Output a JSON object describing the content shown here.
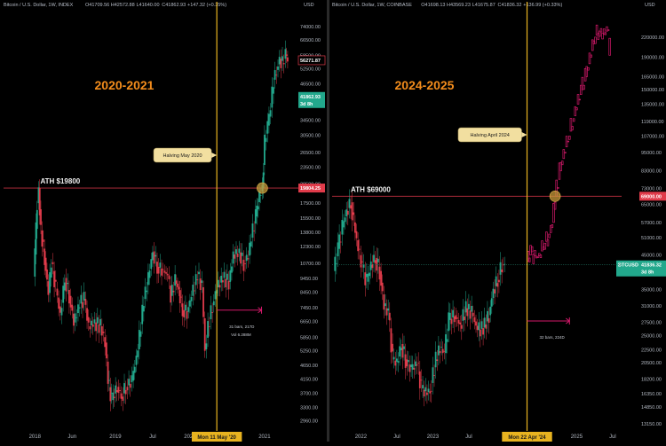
{
  "chart_data": [
    {
      "type": "candlestick",
      "title": "2020-2021",
      "header": {
        "symbol": "Bitcoin / U.S. Dollar, 1W, INDEX",
        "o": "O41709.56",
        "h": "H42572.88",
        "l": "L41640.00",
        "c": "C41862.93",
        "chg": "+147.32 (+0.35%)"
      },
      "currency": "USD",
      "scale": "log",
      "ylim": [
        2800,
        82000
      ],
      "y_ticks": [
        "74000.00",
        "66500.00",
        "58500.00",
        "52500.00",
        "46500.00",
        "39500.00",
        "34500.00",
        "30500.00",
        "26500.00",
        "23500.00",
        "20500.00",
        "17500.00",
        "15500.00",
        "13800.00",
        "12300.00",
        "10700.00",
        "9450.00",
        "8450.00",
        "7450.00",
        "6650.00",
        "5850.00",
        "5250.00",
        "4650.00",
        "4150.00",
        "3700.00",
        "3300.00",
        "2960.00"
      ],
      "x_ticks": [
        {
          "label": "2018",
          "t": 2017.92
        },
        {
          "label": "Jun",
          "t": 2018.42
        },
        {
          "label": "2019",
          "t": 2019.0
        },
        {
          "label": "Jul",
          "t": 2019.5
        },
        {
          "label": "2020",
          "t": 2020.0
        },
        {
          "label": "Jul",
          "t": 2020.5
        },
        {
          "label": "2021",
          "t": 2021.0
        }
      ],
      "xlim": [
        2017.5,
        2021.43
      ],
      "ath_label": "ATH $19800",
      "ath_value": 19800,
      "ath_date": 2017.97,
      "cross_date": 2020.97,
      "halving_label": "Halving May 2020",
      "halving_date": 2020.36,
      "date_tag": "Mon 11 May '20",
      "price_tags": [
        {
          "label": "56271.87",
          "value": 56271.87,
          "color": "#e03b4a",
          "style": "outline"
        },
        {
          "label": "41862.93",
          "value": 41862.93,
          "color": "#22a88c",
          "style": "fill",
          "sub": "3d 8h"
        },
        {
          "label": "19804.25",
          "value": 19804.25,
          "color": "#e03b4a",
          "style": "fill"
        }
      ],
      "measure": {
        "bars": "31 bars, 217D",
        "vol": "Vol 6.288M",
        "from": 2020.36,
        "to": 2020.96,
        "value": 7300
      },
      "series": [
        {
          "t": 2017.9,
          "v": 9600
        },
        {
          "t": 2017.92,
          "v": 11500
        },
        {
          "t": 2017.95,
          "v": 17500
        },
        {
          "t": 2017.97,
          "v": 19800
        },
        {
          "t": 2018.0,
          "v": 14000
        },
        {
          "t": 2018.05,
          "v": 11200
        },
        {
          "t": 2018.1,
          "v": 8400
        },
        {
          "t": 2018.14,
          "v": 10800
        },
        {
          "t": 2018.2,
          "v": 8700
        },
        {
          "t": 2018.26,
          "v": 7000
        },
        {
          "t": 2018.32,
          "v": 9500
        },
        {
          "t": 2018.38,
          "v": 8200
        },
        {
          "t": 2018.44,
          "v": 6600
        },
        {
          "t": 2018.52,
          "v": 7700
        },
        {
          "t": 2018.58,
          "v": 8000
        },
        {
          "t": 2018.64,
          "v": 6400
        },
        {
          "t": 2018.72,
          "v": 6600
        },
        {
          "t": 2018.8,
          "v": 6400
        },
        {
          "t": 2018.86,
          "v": 5600
        },
        {
          "t": 2018.9,
          "v": 4100
        },
        {
          "t": 2018.95,
          "v": 3500
        },
        {
          "t": 2019.02,
          "v": 3900
        },
        {
          "t": 2019.08,
          "v": 3600
        },
        {
          "t": 2019.14,
          "v": 3900
        },
        {
          "t": 2019.22,
          "v": 4100
        },
        {
          "t": 2019.3,
          "v": 5300
        },
        {
          "t": 2019.38,
          "v": 8000
        },
        {
          "t": 2019.44,
          "v": 9500
        },
        {
          "t": 2019.5,
          "v": 11800
        },
        {
          "t": 2019.56,
          "v": 10400
        },
        {
          "t": 2019.62,
          "v": 10200
        },
        {
          "t": 2019.7,
          "v": 9700
        },
        {
          "t": 2019.74,
          "v": 8200
        },
        {
          "t": 2019.8,
          "v": 9300
        },
        {
          "t": 2019.85,
          "v": 8600
        },
        {
          "t": 2019.9,
          "v": 7300
        },
        {
          "t": 2019.96,
          "v": 7200
        },
        {
          "t": 2020.02,
          "v": 8200
        },
        {
          "t": 2020.1,
          "v": 9800
        },
        {
          "t": 2020.16,
          "v": 8800
        },
        {
          "t": 2020.2,
          "v": 5300
        },
        {
          "t": 2020.24,
          "v": 6400
        },
        {
          "t": 2020.3,
          "v": 7600
        },
        {
          "t": 2020.36,
          "v": 8800
        },
        {
          "t": 2020.44,
          "v": 9500
        },
        {
          "t": 2020.52,
          "v": 9200
        },
        {
          "t": 2020.58,
          "v": 11500
        },
        {
          "t": 2020.66,
          "v": 11700
        },
        {
          "t": 2020.72,
          "v": 10700
        },
        {
          "t": 2020.78,
          "v": 11400
        },
        {
          "t": 2020.82,
          "v": 13200
        },
        {
          "t": 2020.88,
          "v": 15700
        },
        {
          "t": 2020.93,
          "v": 18700
        },
        {
          "t": 2020.97,
          "v": 19800
        },
        {
          "t": 2021.0,
          "v": 28900
        },
        {
          "t": 2021.04,
          "v": 33000
        },
        {
          "t": 2021.08,
          "v": 38200
        },
        {
          "t": 2021.12,
          "v": 48000
        },
        {
          "t": 2021.16,
          "v": 52000
        },
        {
          "t": 2021.2,
          "v": 57000
        },
        {
          "t": 2021.24,
          "v": 55000
        },
        {
          "t": 2021.28,
          "v": 59000
        },
        {
          "t": 2021.31,
          "v": 56271.87
        }
      ]
    },
    {
      "type": "candlestick",
      "title": "2024-2025",
      "header": {
        "symbol": "Bitcoin / U.S. Dollar, 1W, COINBASE",
        "o": "O41698.13",
        "h": "H43569.23",
        "l": "L41675.87",
        "c": "C41836.32",
        "chg": "+136.99 (+0.33%)"
      },
      "currency": "USD",
      "scale": "log",
      "ylim": [
        12800,
        260000
      ],
      "y_ticks": [
        "220000.00",
        "190000.00",
        "165000.00",
        "150000.00",
        "135000.00",
        "119000.00",
        "107000.00",
        "95000.00",
        "83000.00",
        "73000.00",
        "65000.00",
        "57000.00",
        "51000.00",
        "45000.00",
        "39000.00",
        "35000.00",
        "31000.00",
        "27500.00",
        "25000.00",
        "22500.00",
        "20500.00",
        "18200.00",
        "16350.00",
        "14850.00",
        "13150.00"
      ],
      "x_ticks": [
        {
          "label": "2022",
          "t": 2022.0
        },
        {
          "label": "Jul",
          "t": 2022.5
        },
        {
          "label": "2023",
          "t": 2023.0
        },
        {
          "label": "Jul",
          "t": 2023.5
        },
        {
          "label": "2025",
          "t": 2025.0
        },
        {
          "label": "Jul",
          "t": 2025.5
        }
      ],
      "xlim": [
        2021.6,
        2025.6
      ],
      "ath_label": "ATH $69000",
      "ath_value": 69000,
      "ath_date": 2021.86,
      "cross_date": 2024.7,
      "halving_label": "Halving April 2024",
      "halving_date": 2024.31,
      "date_tag": "Mon 22 Apr '24",
      "price_tags": [
        {
          "label": "69000.00",
          "value": 69000,
          "color": "#e03b4a",
          "style": "fill"
        },
        {
          "label": "BTCUSD",
          "value": 41836.32,
          "color": "#22a88c",
          "style": "fill",
          "sub": "",
          "wide": "41836.32",
          "sub2": "3d 8h"
        }
      ],
      "measure": {
        "bars": "32 bars, 224D",
        "from": 2024.31,
        "to": 2024.9,
        "value": 27800
      },
      "history": [
        {
          "t": 2021.62,
          "v": 40000
        },
        {
          "t": 2021.68,
          "v": 47000
        },
        {
          "t": 2021.74,
          "v": 55000
        },
        {
          "t": 2021.8,
          "v": 62000
        },
        {
          "t": 2021.86,
          "v": 66000
        },
        {
          "t": 2021.9,
          "v": 57000
        },
        {
          "t": 2021.96,
          "v": 47000
        },
        {
          "t": 2022.02,
          "v": 41000
        },
        {
          "t": 2022.08,
          "v": 37000
        },
        {
          "t": 2022.14,
          "v": 42000
        },
        {
          "t": 2022.2,
          "v": 44000
        },
        {
          "t": 2022.26,
          "v": 40000
        },
        {
          "t": 2022.32,
          "v": 31000
        },
        {
          "t": 2022.38,
          "v": 29500
        },
        {
          "t": 2022.44,
          "v": 21000
        },
        {
          "t": 2022.5,
          "v": 20500
        },
        {
          "t": 2022.56,
          "v": 23500
        },
        {
          "t": 2022.62,
          "v": 21000
        },
        {
          "t": 2022.7,
          "v": 19500
        },
        {
          "t": 2022.78,
          "v": 20500
        },
        {
          "t": 2022.84,
          "v": 17000
        },
        {
          "t": 2022.9,
          "v": 16500
        },
        {
          "t": 2022.96,
          "v": 16700
        },
        {
          "t": 2023.04,
          "v": 21000
        },
        {
          "t": 2023.1,
          "v": 23000
        },
        {
          "t": 2023.16,
          "v": 22000
        },
        {
          "t": 2023.22,
          "v": 28000
        },
        {
          "t": 2023.3,
          "v": 29000
        },
        {
          "t": 2023.38,
          "v": 27000
        },
        {
          "t": 2023.46,
          "v": 30500
        },
        {
          "t": 2023.54,
          "v": 29500
        },
        {
          "t": 2023.62,
          "v": 26000
        },
        {
          "t": 2023.7,
          "v": 26500
        },
        {
          "t": 2023.78,
          "v": 29000
        },
        {
          "t": 2023.84,
          "v": 35000
        },
        {
          "t": 2023.9,
          "v": 37500
        },
        {
          "t": 2023.96,
          "v": 42000
        },
        {
          "t": 2024.0,
          "v": 41800
        }
      ],
      "projection": [
        {
          "t": 2024.31,
          "v": 43000
        },
        {
          "t": 2024.36,
          "v": 46000
        },
        {
          "t": 2024.42,
          "v": 44000
        },
        {
          "t": 2024.48,
          "v": 45000
        },
        {
          "t": 2024.54,
          "v": 49000
        },
        {
          "t": 2024.6,
          "v": 51000
        },
        {
          "t": 2024.66,
          "v": 57000
        },
        {
          "t": 2024.7,
          "v": 69000
        },
        {
          "t": 2024.76,
          "v": 83000
        },
        {
          "t": 2024.82,
          "v": 95000
        },
        {
          "t": 2024.88,
          "v": 107000
        },
        {
          "t": 2024.94,
          "v": 119000
        },
        {
          "t": 2025.0,
          "v": 135000
        },
        {
          "t": 2025.06,
          "v": 150000
        },
        {
          "t": 2025.12,
          "v": 165000
        },
        {
          "t": 2025.18,
          "v": 190000
        },
        {
          "t": 2025.24,
          "v": 220000
        },
        {
          "t": 2025.3,
          "v": 230000
        },
        {
          "t": 2025.36,
          "v": 225000
        },
        {
          "t": 2025.42,
          "v": 232000
        },
        {
          "t": 2025.46,
          "v": 205000
        }
      ]
    }
  ]
}
